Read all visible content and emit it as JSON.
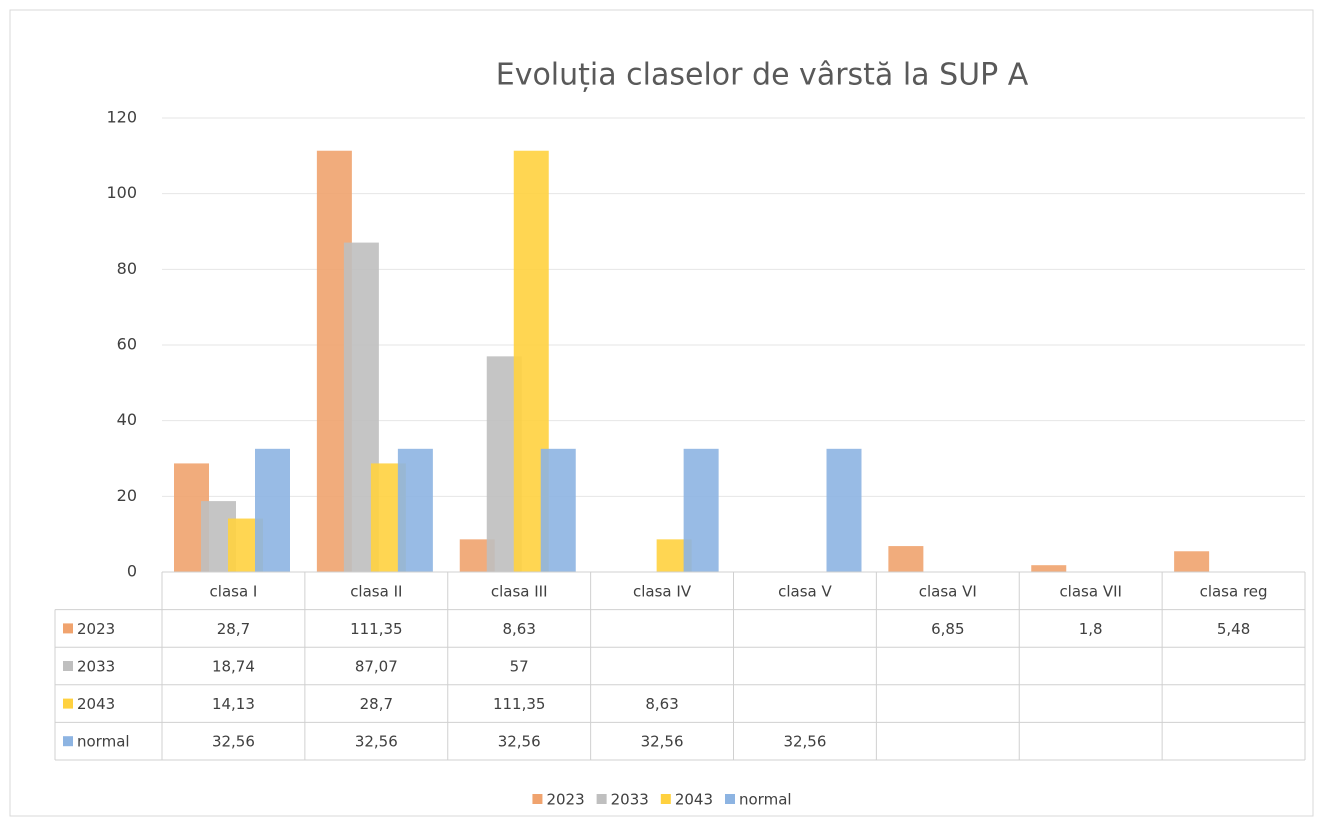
{
  "chart_data": {
    "type": "bar",
    "title": "Evoluția claselor de vârstă la SUP A",
    "categories": [
      "clasa I",
      "clasa II",
      "clasa III",
      "clasa IV",
      "clasa V",
      "clasa VI",
      "clasa VII",
      "clasa reg"
    ],
    "series": [
      {
        "name": "2023",
        "color": "#f0a36e",
        "values": [
          28.7,
          111.35,
          8.63,
          null,
          null,
          6.85,
          1.8,
          5.48
        ],
        "value_labels": [
          "28,7",
          "111,35",
          "8,63",
          null,
          null,
          "6,85",
          "1,8",
          "5,48"
        ]
      },
      {
        "name": "2033",
        "color": "#bfbfbf",
        "values": [
          18.74,
          87.07,
          57,
          null,
          null,
          null,
          null,
          null
        ],
        "value_labels": [
          "18,74",
          "87,07",
          "57",
          null,
          null,
          null,
          null,
          null
        ]
      },
      {
        "name": "2043",
        "color": "#ffd13f",
        "values": [
          14.13,
          28.7,
          111.35,
          8.63,
          null,
          null,
          null,
          null
        ],
        "value_labels": [
          "14,13",
          "28,7",
          "111,35",
          "8,63",
          null,
          null,
          null,
          null
        ]
      },
      {
        "name": "normal",
        "color": "#8db4e2",
        "values": [
          32.56,
          32.56,
          32.56,
          32.56,
          32.56,
          null,
          null,
          null
        ],
        "value_labels": [
          "32,56",
          "32,56",
          "32,56",
          "32,56",
          "32,56",
          null,
          null,
          null
        ]
      }
    ],
    "ylim": [
      0,
      120
    ],
    "yticks": [
      0,
      20,
      40,
      60,
      80,
      100,
      120
    ],
    "grid": true,
    "data_table": true,
    "legend": "bottom"
  }
}
